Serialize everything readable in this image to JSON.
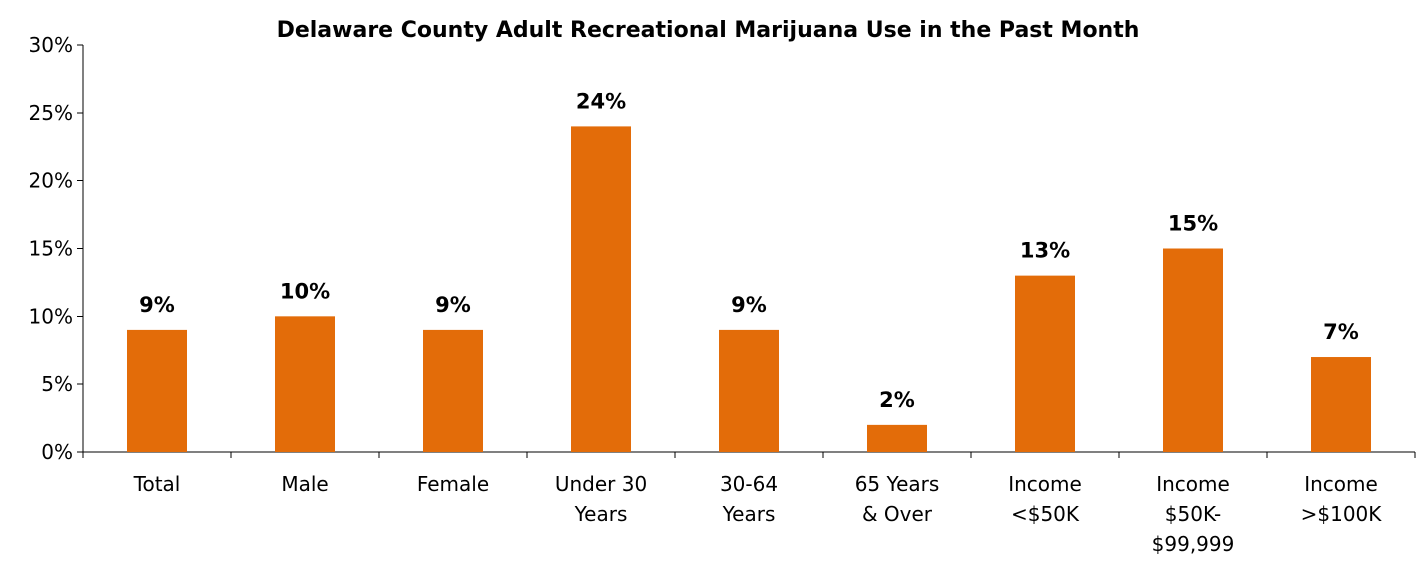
{
  "chart_data": {
    "type": "bar",
    "title": "Delaware County Adult Recreational Marijuana Use in the Past Month",
    "xlabel": "",
    "ylabel": "",
    "categories": [
      "Total",
      "Male",
      "Female",
      "Under 30 Years",
      "30-64 Years",
      "65 Years & Over",
      "Income <$50K",
      "Income $50K-$99,999",
      "Income >$100K"
    ],
    "category_lines": [
      [
        "Total"
      ],
      [
        "Male"
      ],
      [
        "Female"
      ],
      [
        "Under 30",
        "Years"
      ],
      [
        "30-64",
        "Years"
      ],
      [
        "65 Years",
        "& Over"
      ],
      [
        "Income",
        "<$50K"
      ],
      [
        "Income",
        "$50K-",
        "$99,999"
      ],
      [
        "Income",
        ">$100K"
      ]
    ],
    "values": [
      9,
      10,
      9,
      24,
      9,
      2,
      13,
      15,
      7
    ],
    "data_labels": [
      "9%",
      "10%",
      "9%",
      "24%",
      "9%",
      "2%",
      "13%",
      "15%",
      "7%"
    ],
    "ylim": [
      0,
      30
    ],
    "yticks": [
      0,
      5,
      10,
      15,
      20,
      25,
      30
    ],
    "ytick_labels": [
      "0%",
      "5%",
      "10%",
      "15%",
      "20%",
      "25%",
      "30%"
    ],
    "bar_color": "#E36C09",
    "grid": false,
    "legend": "none"
  }
}
